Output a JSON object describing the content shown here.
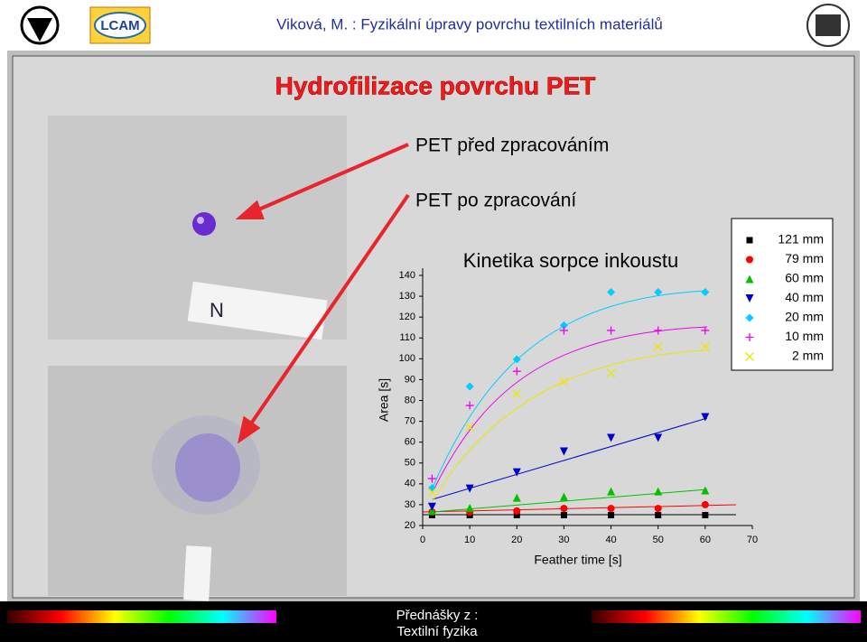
{
  "header": {
    "title": "Viková, M. : Fyzikální úpravy povrchu textilních materiálů",
    "logo_text": "LCAM"
  },
  "slide": {
    "title": "Hydrofilizace povrchu PET",
    "label_before": "PET před zpracováním",
    "label_after": "PET po zpracování"
  },
  "footer": {
    "line1": "Přednášky z :",
    "line2": "Textilní fyzika"
  },
  "chart_data": {
    "type": "scatter",
    "title": "Kinetika sorpce inkoustu",
    "x_label": "Feather time [s]",
    "y_label": "Area [s]",
    "x": [
      2,
      10,
      20,
      30,
      40,
      50,
      60
    ],
    "xlim": [
      0,
      70
    ],
    "xticks": [
      0,
      10,
      20,
      30,
      40,
      50,
      60,
      70
    ],
    "ylim": [
      20,
      140
    ],
    "yticks": [
      20,
      30,
      40,
      50,
      60,
      70,
      80,
      90,
      100,
      110,
      120,
      130,
      140
    ],
    "legend": "top-right",
    "series": [
      {
        "name": "121 mm",
        "color": "#000000",
        "marker": "square",
        "values": [
          25,
          25,
          25,
          25,
          25,
          25,
          25
        ]
      },
      {
        "name": "79 mm",
        "color": "#ff0000",
        "marker": "circle",
        "values": [
          26.5,
          26.5,
          27,
          28.2,
          28.2,
          28.2,
          30
        ]
      },
      {
        "name": "60 mm",
        "color": "#00c000",
        "marker": "triangle",
        "values": [
          27,
          28.5,
          33.4,
          33.8,
          36.4,
          36.4,
          36.9
        ]
      },
      {
        "name": "40 mm",
        "color": "#0000cc",
        "marker": "triangle-down",
        "values": [
          29,
          37.7,
          45.5,
          55.5,
          62,
          62,
          72
        ]
      },
      {
        "name": "20 mm",
        "color": "#00ccff",
        "marker": "diamond",
        "values": [
          38,
          86.7,
          99.7,
          116,
          132,
          132,
          132
        ]
      },
      {
        "name": "10 mm",
        "color": "#ee00ee",
        "marker": "plus",
        "values": [
          42.5,
          77.6,
          94,
          113.6,
          113.6,
          113.6,
          113.6
        ]
      },
      {
        "name": "2 mm",
        "color": "#e8e800",
        "marker": "cross",
        "values": [
          36,
          67.2,
          83.2,
          88.9,
          93.2,
          105.8,
          105.8
        ]
      }
    ]
  }
}
